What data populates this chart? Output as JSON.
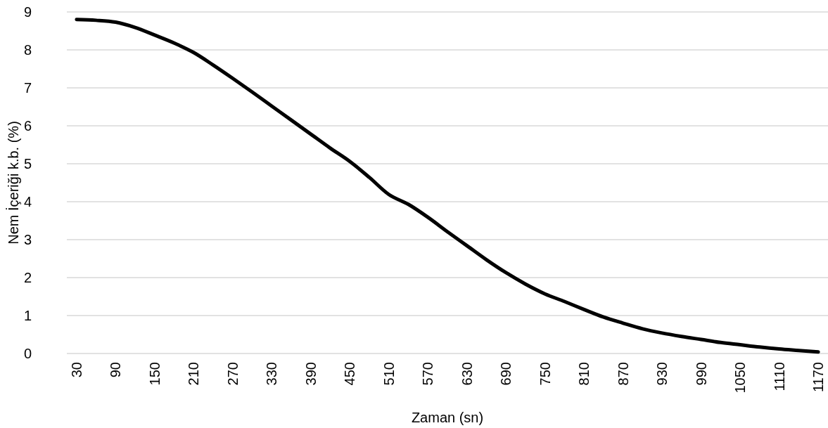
{
  "chart_data": {
    "type": "line",
    "xlabel": "Zaman (sn)",
    "ylabel": "Nem İçeriği k.b. (%)",
    "categories": [
      "30",
      null,
      "90",
      null,
      "150",
      null,
      "210",
      null,
      "270",
      null,
      "330",
      null,
      "390",
      null,
      "450",
      null,
      "510",
      null,
      "570",
      null,
      "630",
      null,
      "690",
      null,
      "750",
      null,
      "810",
      null,
      "870",
      null,
      "930",
      null,
      "990",
      null,
      "1050",
      null,
      "1110",
      null,
      "1170"
    ],
    "series": [
      {
        "color": "#000000",
        "values": [
          8.8,
          8.78,
          8.73,
          8.59,
          8.39,
          8.18,
          7.93,
          7.6,
          7.25,
          6.89,
          6.52,
          6.15,
          5.78,
          5.41,
          5.06,
          4.64,
          4.19,
          3.93,
          3.59,
          3.21,
          2.84,
          2.47,
          2.13,
          1.83,
          1.57,
          1.37,
          1.16,
          0.96,
          0.8,
          0.65,
          0.54,
          0.45,
          0.37,
          0.29,
          0.23,
          0.17,
          0.12,
          0.08,
          0.04
        ]
      }
    ],
    "ylim": [
      0,
      9
    ],
    "yticks": [
      0,
      1,
      2,
      3,
      4,
      5,
      6,
      7,
      8,
      9
    ],
    "grid": "y",
    "marker": "none",
    "line_style": "solid"
  }
}
